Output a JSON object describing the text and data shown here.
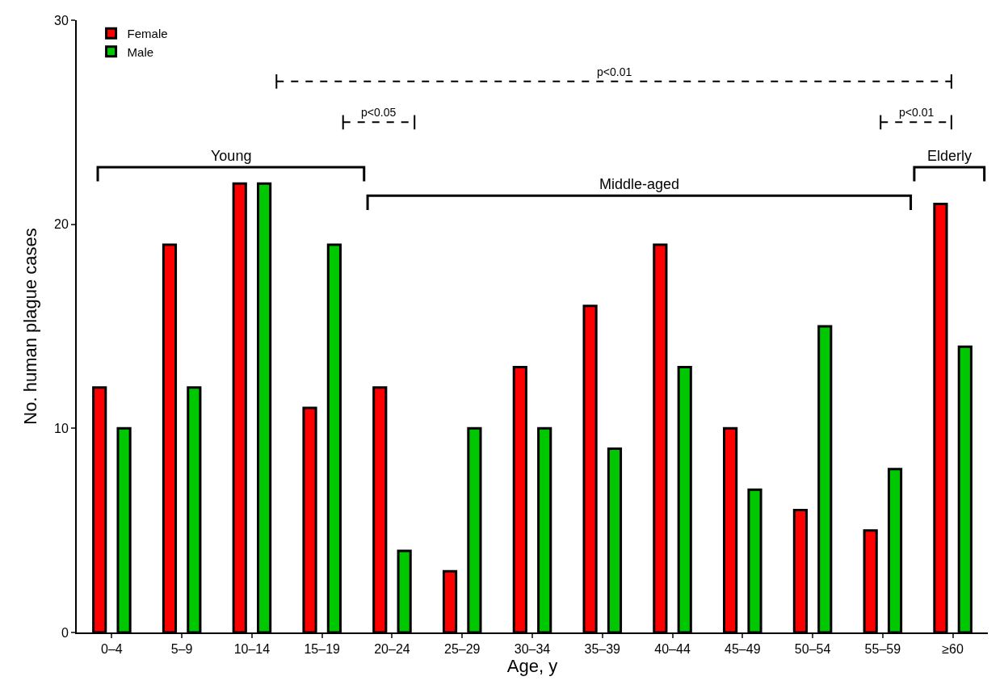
{
  "chart_data": {
    "type": "bar",
    "xlabel": "Age, y",
    "ylabel": "No. human plague cases",
    "categories": [
      "0–4",
      "5–9",
      "10–14",
      "15–19",
      "20–24",
      "25–29",
      "30–34",
      "35–39",
      "40–44",
      "45–49",
      "50–54",
      "55–59",
      "≥60"
    ],
    "series": [
      {
        "name": "Female",
        "color": "#ff0000",
        "values": [
          12,
          19,
          22,
          11,
          12,
          3,
          13,
          16,
          19,
          10,
          6,
          5,
          21
        ]
      },
      {
        "name": "Male",
        "color": "#00c800",
        "values": [
          10,
          12,
          22,
          19,
          4,
          10,
          10,
          9,
          13,
          7,
          15,
          8,
          14
        ]
      }
    ],
    "ylim": [
      0,
      30
    ],
    "yticks": [
      0,
      10,
      20,
      30
    ],
    "legend": "top left",
    "annotations": [
      "p<0.01",
      "p<0.05",
      "p<0.01",
      "Young",
      "Middle-aged",
      "Elderly"
    ]
  }
}
